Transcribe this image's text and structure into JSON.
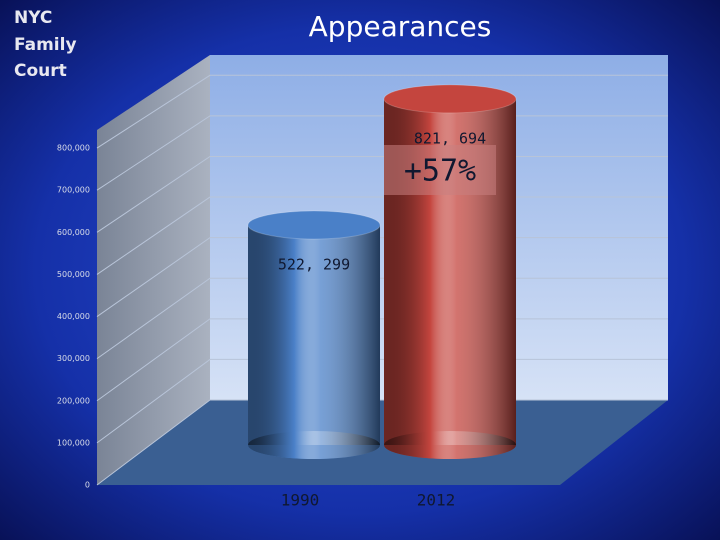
{
  "header": {
    "lines": [
      "NYC",
      "Family",
      "Court"
    ]
  },
  "chart_data": {
    "type": "bar",
    "title": "Appearances",
    "annotation": "+57%",
    "categories": [
      "1990",
      "2012"
    ],
    "values": [
      522299,
      821694
    ],
    "value_labels": [
      "522, 299",
      "821, 694"
    ],
    "colors": [
      "#4a80c8",
      "#c4453e"
    ],
    "ylim": [
      0,
      850000
    ],
    "yticks": [
      0,
      {
        "value": 100000,
        "label": "100,000"
      },
      {
        "value": 200000,
        "label": "200,000"
      },
      {
        "value": 300000,
        "label": "300,000"
      },
      {
        "value": 400000,
        "label": "400,000"
      },
      {
        "value": 500000,
        "label": "500,000"
      },
      {
        "value": 600000,
        "label": "600,000"
      },
      {
        "value": 700000,
        "label": "700,000"
      },
      {
        "value": 800000,
        "label": "800,000"
      }
    ],
    "grid": true
  }
}
